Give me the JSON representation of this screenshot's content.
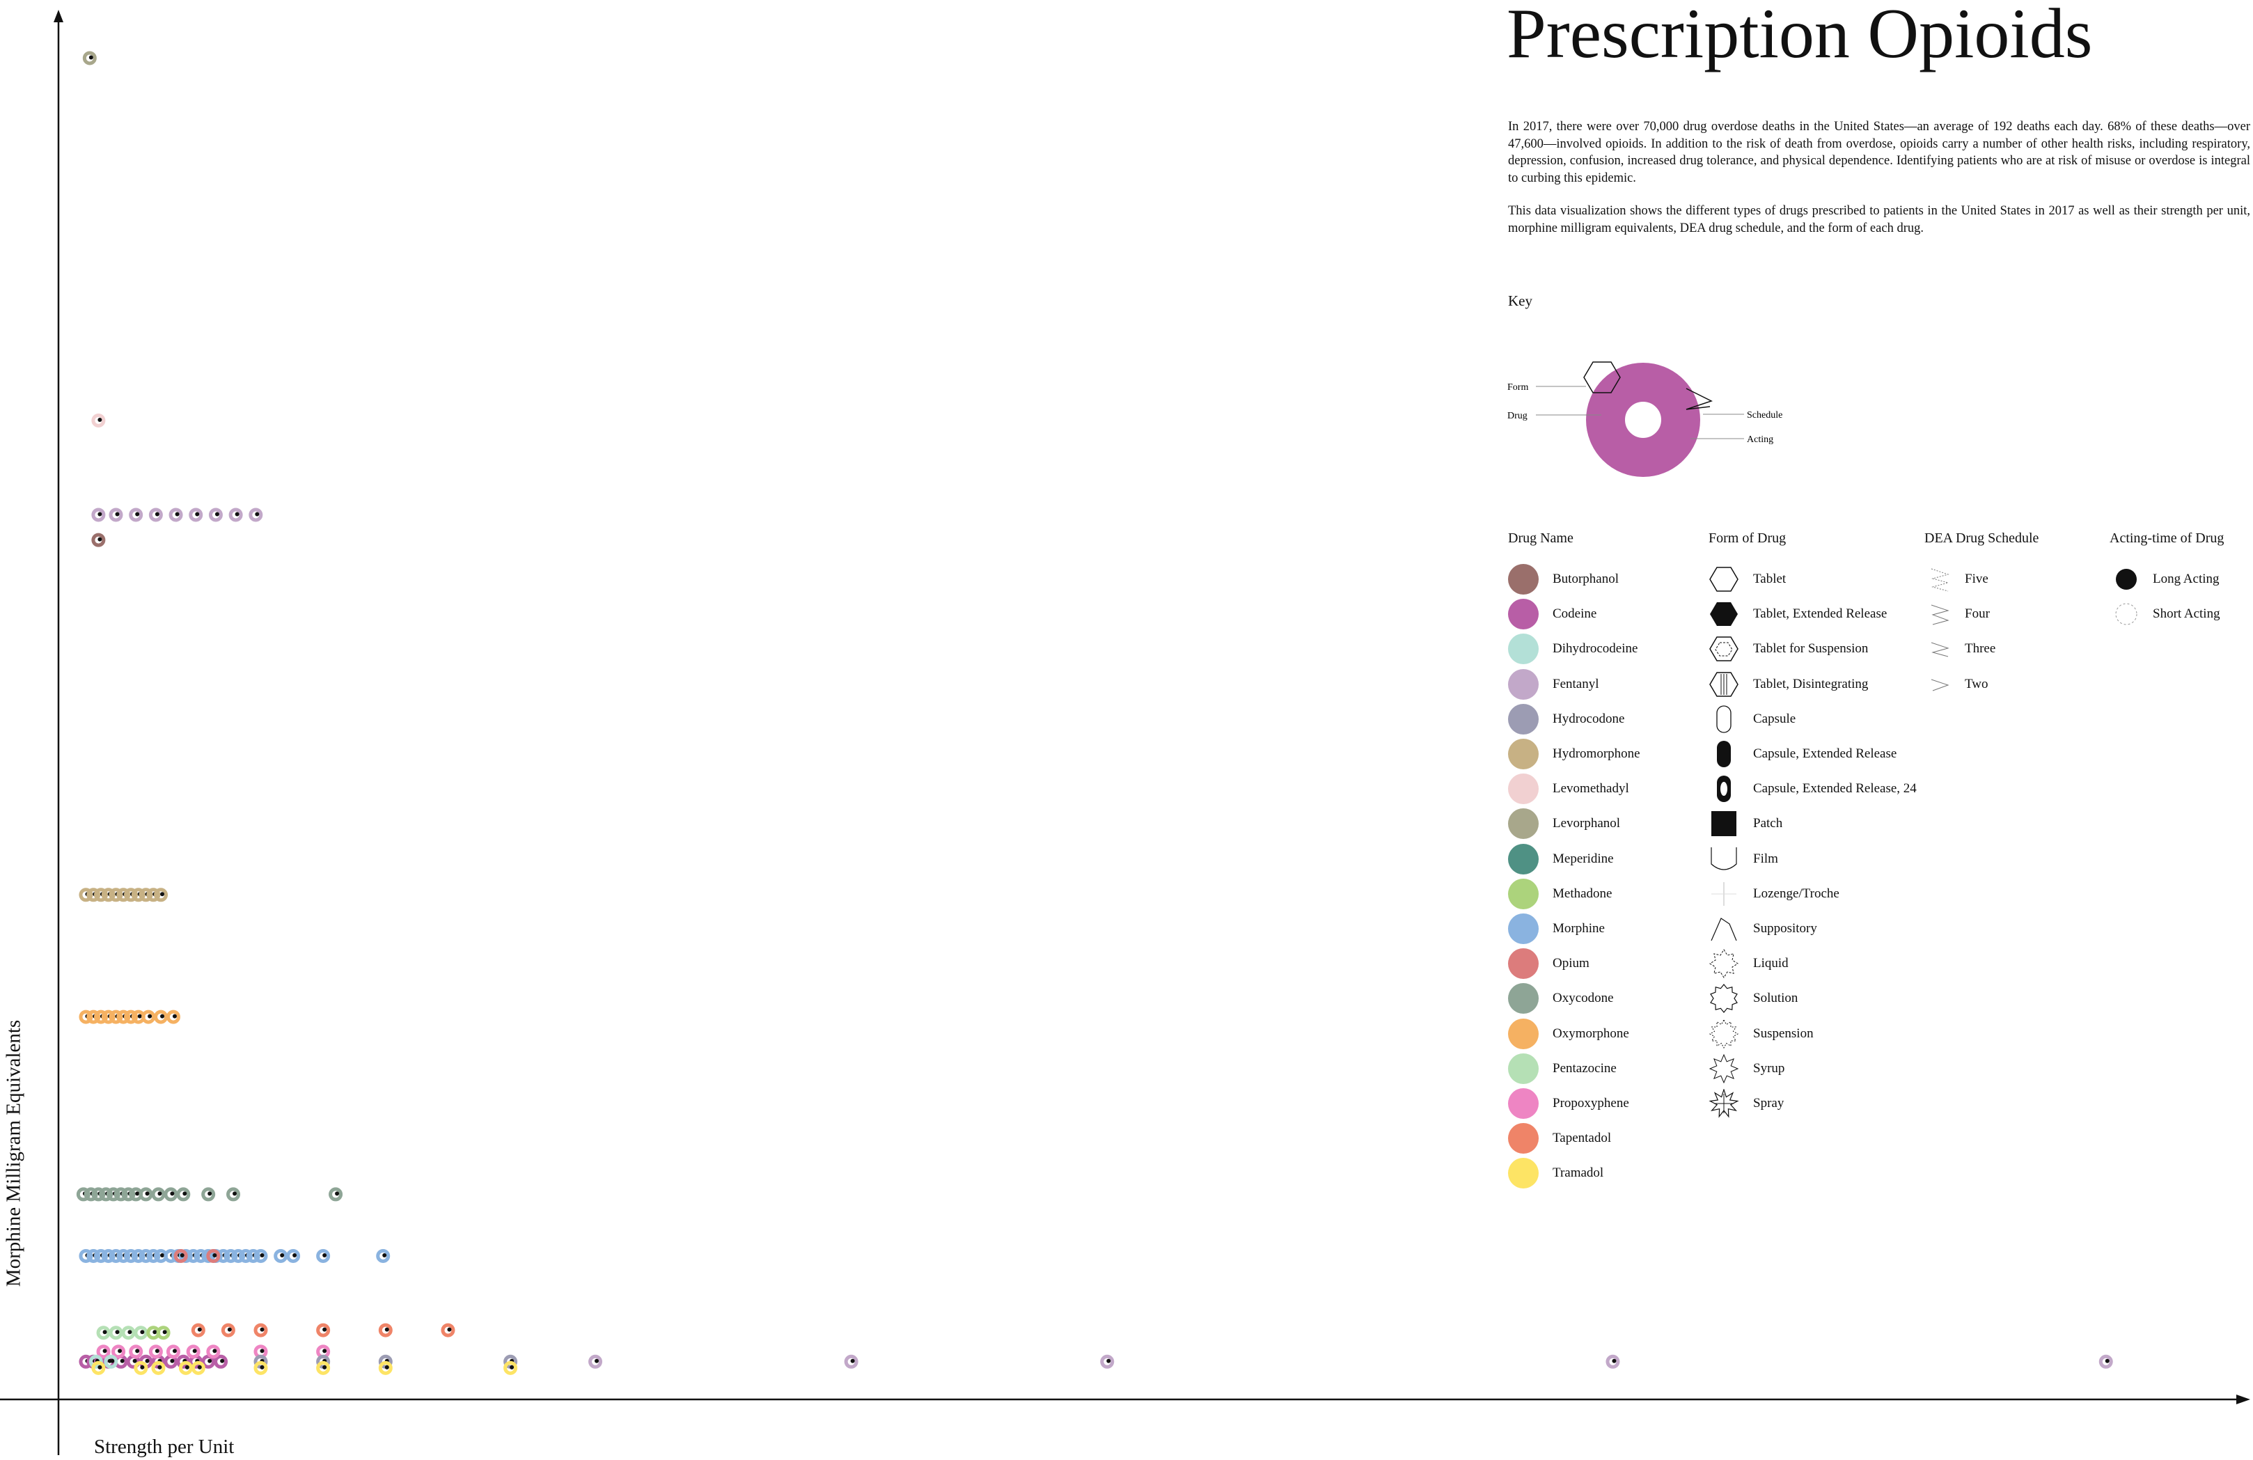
{
  "title": "Prescription Opioids",
  "intro": [
    "In 2017, there were over 70,000 drug overdose deaths in the United States—an average of 192 deaths each day. 68% of these deaths—over 47,600—involved opioids. In addition to the risk of death from overdose, opioids carry a number of other health risks, including respiratory, depression, confusion, increased drug tolerance, and physical dependence. Identifying patients who are at risk of misuse or overdose is integral to curbing this epidemic.",
    "This data visualization shows the different types of drugs prescribed to patients in the United States in 2017 as well as their strength per unit, morphine milligram equivalents, DEA drug schedule, and the form of each drug."
  ],
  "key": {
    "title": "Key",
    "labels": {
      "form": "Form",
      "drug": "Drug",
      "schedule": "Schedule",
      "acting": "Acting"
    },
    "color": "#b85ea6"
  },
  "legend": {
    "drug_header": "Drug Name",
    "form_header": "Form of Drug",
    "schedule_header": "DEA Drug Schedule",
    "acting_header": "Acting-time of Drug",
    "drugs": [
      {
        "name": "Butorphanol",
        "color": "#9a6f6b"
      },
      {
        "name": "Codeine",
        "color": "#b85ea6"
      },
      {
        "name": "Dihydrocodeine",
        "color": "#b3e0d7"
      },
      {
        "name": "Fentanyl",
        "color": "#c2a8c9"
      },
      {
        "name": "Hydrocodone",
        "color": "#9c9cb3"
      },
      {
        "name": "Hydromorphone",
        "color": "#c7b184"
      },
      {
        "name": "Levomethadyl",
        "color": "#f1d0d1"
      },
      {
        "name": "Levorphanol",
        "color": "#a8a78b"
      },
      {
        "name": "Meperidine",
        "color": "#4f9184"
      },
      {
        "name": "Methadone",
        "color": "#acd37c"
      },
      {
        "name": "Morphine",
        "color": "#8ab3e0"
      },
      {
        "name": "Opium",
        "color": "#dc7c7c"
      },
      {
        "name": "Oxycodone",
        "color": "#8ea596"
      },
      {
        "name": "Oxymorphone",
        "color": "#f5b162"
      },
      {
        "name": "Pentazocine",
        "color": "#b5e0b5"
      },
      {
        "name": "Propoxyphene",
        "color": "#ee85c3"
      },
      {
        "name": "Tapentadol",
        "color": "#ef8468"
      },
      {
        "name": "Tramadol",
        "color": "#fde465"
      }
    ],
    "forms": [
      {
        "name": "Tablet",
        "icon": "hexagon-outline-icon"
      },
      {
        "name": "Tablet, Extended Release",
        "icon": "hexagon-filled-icon"
      },
      {
        "name": "Tablet for Suspension",
        "icon": "hexagon-dashed-icon"
      },
      {
        "name": "Tablet, Disintegrating",
        "icon": "hexagon-striped-icon"
      },
      {
        "name": "Capsule",
        "icon": "capsule-outline-icon"
      },
      {
        "name": "Capsule, Extended Release",
        "icon": "capsule-filled-icon"
      },
      {
        "name": "Capsule, Extended Release, 24",
        "icon": "capsule-ring-icon"
      },
      {
        "name": "Patch",
        "icon": "square-filled-icon"
      },
      {
        "name": "Film",
        "icon": "film-icon"
      },
      {
        "name": "Lozenge/Troche",
        "icon": "lozenge-icon"
      },
      {
        "name": "Suppository",
        "icon": "suppository-icon"
      },
      {
        "name": "Liquid",
        "icon": "star-liquid-icon"
      },
      {
        "name": "Solution",
        "icon": "star-solution-icon"
      },
      {
        "name": "Suspension",
        "icon": "star-suspension-icon"
      },
      {
        "name": "Syrup",
        "icon": "star-syrup-icon"
      },
      {
        "name": "Spray",
        "icon": "star-spray-icon"
      }
    ],
    "schedules": [
      {
        "name": "Five",
        "icon": "zigzag-five-icon"
      },
      {
        "name": "Four",
        "icon": "zigzag-four-icon"
      },
      {
        "name": "Three",
        "icon": "zigzag-three-icon"
      },
      {
        "name": "Two",
        "icon": "chevron-two-icon"
      }
    ],
    "acting": [
      {
        "name": "Long Acting",
        "icon": "filled-circle-icon"
      },
      {
        "name": "Short Acting",
        "icon": "dashed-circle-icon"
      }
    ]
  },
  "chart_data": {
    "type": "scatter",
    "xlabel": "Strength per Unit",
    "ylabel": "Morphine Milligram Equivalents",
    "xlim": [
      0,
      1750
    ],
    "ylim": [
      0,
      1100
    ],
    "grid": false,
    "series": [
      {
        "name": "Levorphanol",
        "color": "#a8a78b",
        "points": [
          [
            25,
            1066
          ]
        ]
      },
      {
        "name": "Levomethadyl",
        "color": "#f1d0d1",
        "points": [
          [
            32,
            778
          ]
        ]
      },
      {
        "name": "Fentanyl",
        "color": "#c2a8c9",
        "points": [
          [
            32,
            703
          ],
          [
            46,
            703
          ],
          [
            62,
            703
          ],
          [
            78,
            703
          ],
          [
            94,
            703
          ],
          [
            110,
            703
          ],
          [
            126,
            703
          ],
          [
            142,
            703
          ],
          [
            158,
            703
          ],
          [
            430,
            30
          ],
          [
            635,
            30
          ],
          [
            840,
            30
          ],
          [
            1245,
            30
          ],
          [
            1640,
            30
          ]
        ]
      },
      {
        "name": "Butorphanol",
        "color": "#9a6f6b",
        "points": [
          [
            32,
            683
          ]
        ]
      },
      {
        "name": "Hydromorphone",
        "color": "#c7b184",
        "points": [
          [
            22,
            401
          ],
          [
            28,
            401
          ],
          [
            34,
            401
          ],
          [
            40,
            401
          ],
          [
            46,
            401
          ],
          [
            52,
            401
          ],
          [
            58,
            401
          ],
          [
            64,
            401
          ],
          [
            70,
            401
          ],
          [
            76,
            401
          ],
          [
            82,
            401
          ]
        ]
      },
      {
        "name": "Oxymorphone",
        "color": "#f5b162",
        "points": [
          [
            22,
            304
          ],
          [
            28,
            304
          ],
          [
            34,
            304
          ],
          [
            40,
            304
          ],
          [
            46,
            304
          ],
          [
            52,
            304
          ],
          [
            58,
            304
          ],
          [
            64,
            304
          ],
          [
            72,
            304
          ],
          [
            82,
            304
          ],
          [
            92,
            304
          ]
        ]
      },
      {
        "name": "Oxycodone",
        "color": "#8ea596",
        "points": [
          [
            20,
            163
          ],
          [
            26,
            163
          ],
          [
            32,
            163
          ],
          [
            38,
            163
          ],
          [
            44,
            163
          ],
          [
            50,
            163
          ],
          [
            56,
            163
          ],
          [
            62,
            163
          ],
          [
            70,
            163
          ],
          [
            80,
            163
          ],
          [
            90,
            163
          ],
          [
            100,
            163
          ],
          [
            120,
            163
          ],
          [
            140,
            163
          ],
          [
            222,
            163
          ]
        ]
      },
      {
        "name": "Morphine",
        "color": "#8ab3e0",
        "points": [
          [
            22,
            114
          ],
          [
            28,
            114
          ],
          [
            34,
            114
          ],
          [
            40,
            114
          ],
          [
            46,
            114
          ],
          [
            52,
            114
          ],
          [
            58,
            114
          ],
          [
            64,
            114
          ],
          [
            70,
            114
          ],
          [
            76,
            114
          ],
          [
            82,
            114
          ],
          [
            90,
            114
          ],
          [
            96,
            114
          ],
          [
            102,
            114
          ],
          [
            108,
            114
          ],
          [
            114,
            114
          ],
          [
            120,
            114
          ],
          [
            126,
            114
          ],
          [
            132,
            114
          ],
          [
            138,
            114
          ],
          [
            144,
            114
          ],
          [
            150,
            114
          ],
          [
            156,
            114
          ],
          [
            162,
            114
          ],
          [
            178,
            114
          ],
          [
            188,
            114
          ],
          [
            212,
            114
          ],
          [
            260,
            114
          ]
        ]
      },
      {
        "name": "Opium",
        "color": "#dc7c7c",
        "points": [
          [
            98,
            114
          ],
          [
            124,
            114
          ]
        ]
      },
      {
        "name": "Tapentadol",
        "color": "#ef8468",
        "points": [
          [
            112,
            55
          ],
          [
            136,
            55
          ],
          [
            162,
            55
          ],
          [
            212,
            55
          ],
          [
            262,
            55
          ],
          [
            312,
            55
          ]
        ]
      },
      {
        "name": "Pentazocine",
        "color": "#b5e0b5",
        "points": [
          [
            36,
            53
          ],
          [
            46,
            53
          ],
          [
            56,
            53
          ],
          [
            66,
            53
          ]
        ]
      },
      {
        "name": "Methadone",
        "color": "#acd37c",
        "points": [
          [
            76,
            53
          ],
          [
            84,
            53
          ]
        ]
      },
      {
        "name": "Codeine",
        "color": "#b85ea6",
        "points": [
          [
            22,
            30
          ],
          [
            28,
            30
          ],
          [
            34,
            30
          ],
          [
            40,
            30
          ],
          [
            50,
            30
          ],
          [
            60,
            30
          ],
          [
            70,
            30
          ],
          [
            80,
            30
          ],
          [
            90,
            30
          ],
          [
            100,
            30
          ],
          [
            110,
            30
          ],
          [
            120,
            30
          ],
          [
            130,
            30
          ]
        ]
      },
      {
        "name": "Propoxyphene",
        "color": "#ee85c3",
        "points": [
          [
            36,
            38
          ],
          [
            48,
            38
          ],
          [
            62,
            38
          ],
          [
            78,
            38
          ],
          [
            92,
            38
          ],
          [
            108,
            38
          ],
          [
            124,
            38
          ],
          [
            162,
            38
          ],
          [
            212,
            38
          ]
        ]
      },
      {
        "name": "Hydrocodone",
        "color": "#9c9cb3",
        "points": [
          [
            162,
            30
          ],
          [
            212,
            30
          ],
          [
            262,
            30
          ],
          [
            362,
            30
          ]
        ]
      },
      {
        "name": "Dihydrocodeine",
        "color": "#b3e0d7",
        "points": [
          [
            30,
            30
          ],
          [
            42,
            30
          ]
        ]
      },
      {
        "name": "Tramadol",
        "color": "#fde465",
        "points": [
          [
            32,
            25
          ],
          [
            66,
            25
          ],
          [
            80,
            25
          ],
          [
            102,
            25
          ],
          [
            112,
            25
          ],
          [
            162,
            25
          ],
          [
            212,
            25
          ],
          [
            262,
            25
          ],
          [
            362,
            25
          ]
        ]
      }
    ]
  }
}
